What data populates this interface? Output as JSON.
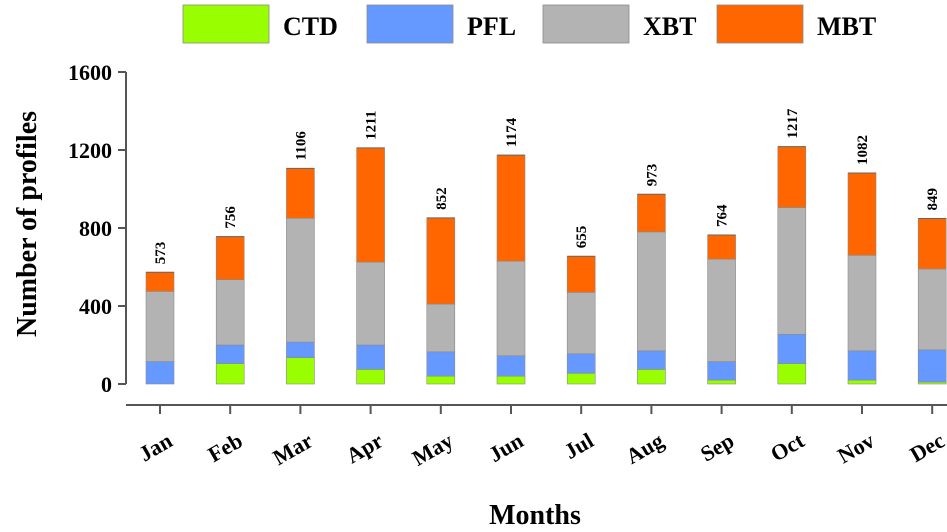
{
  "chart_data": {
    "type": "bar",
    "stacked": true,
    "title": "",
    "xlabel": "Months",
    "ylabel": "Number of profiles",
    "ylim": [
      0,
      1600
    ],
    "yticks": [
      0,
      400,
      800,
      1200,
      1600
    ],
    "categories": [
      "Jan",
      "Feb",
      "Mar",
      "Apr",
      "May",
      "Jun",
      "Jul",
      "Aug",
      "Sep",
      "Oct",
      "Nov",
      "Dec"
    ],
    "series": [
      {
        "name": "CTD",
        "color": "#99ff00",
        "values": [
          0,
          105,
          135,
          75,
          40,
          40,
          55,
          75,
          20,
          105,
          20,
          10
        ]
      },
      {
        "name": "PFL",
        "color": "#6699ff",
        "values": [
          115,
          95,
          80,
          125,
          125,
          105,
          100,
          95,
          95,
          150,
          150,
          165
        ]
      },
      {
        "name": "XBT",
        "color": "#b3b3b3",
        "values": [
          360,
          335,
          635,
          425,
          245,
          485,
          315,
          610,
          525,
          650,
          490,
          415
        ]
      },
      {
        "name": "MBT",
        "color": "#ff6600",
        "values": [
          98,
          221,
          256,
          586,
          442,
          544,
          185,
          193,
          124,
          312,
          422,
          259
        ]
      }
    ],
    "totals": [
      573,
      756,
      1106,
      1211,
      852,
      1174,
      655,
      973,
      764,
      1217,
      1082,
      849
    ],
    "legend_position": "top",
    "grid": false
  }
}
